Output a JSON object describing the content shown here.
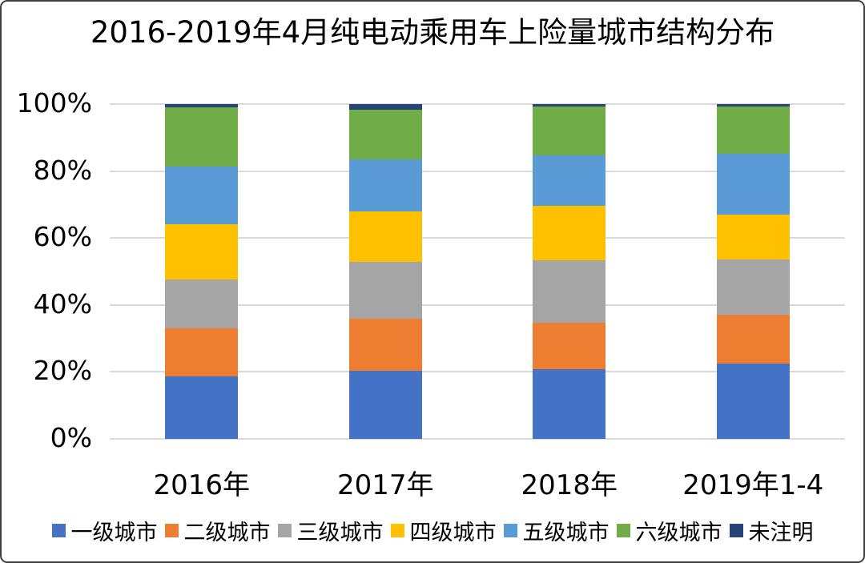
{
  "frame": {
    "background": "#ffffff",
    "border_color": "#3f3f3f"
  },
  "chart_data": {
    "type": "bar",
    "subtype": "stacked-100-percent",
    "title": "2016-2019年4月纯电动乘用车上险量城市结构分布",
    "categories": [
      "2016年",
      "2017年",
      "2018年",
      "2019年1-4"
    ],
    "series": [
      {
        "name": "一级城市",
        "color": "#4472c4",
        "values": [
          18.7,
          20.3,
          20.7,
          22.5
        ]
      },
      {
        "name": "二级城市",
        "color": "#ed7d31",
        "values": [
          14.3,
          15.6,
          14.1,
          14.6
        ]
      },
      {
        "name": "三级城市",
        "color": "#a5a5a5",
        "values": [
          14.6,
          16.9,
          18.5,
          16.4
        ]
      },
      {
        "name": "四级城市",
        "color": "#ffc000",
        "values": [
          16.5,
          15.1,
          16.3,
          13.5
        ]
      },
      {
        "name": "五级城市",
        "color": "#5b9bd5",
        "values": [
          17.2,
          15.7,
          15.0,
          18.2
        ]
      },
      {
        "name": "六级城市",
        "color": "#70ad47",
        "values": [
          17.7,
          14.8,
          14.7,
          14.1
        ]
      },
      {
        "name": "未注明",
        "color": "#264478",
        "values": [
          1.0,
          1.6,
          0.7,
          0.7
        ]
      }
    ],
    "y_ticks": [
      "0%",
      "20%",
      "40%",
      "60%",
      "80%",
      "100%"
    ],
    "ylim": [
      0,
      100
    ],
    "grid": true,
    "gridline_color": "#d9d9d9",
    "legend_position": "bottom",
    "xlabel": "",
    "ylabel": ""
  }
}
